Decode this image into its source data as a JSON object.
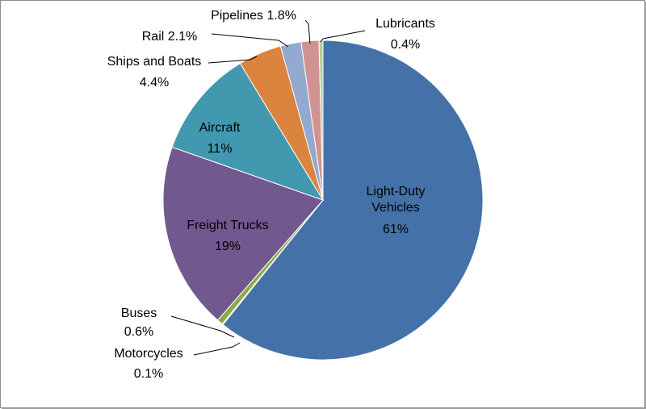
{
  "chart_data": {
    "type": "pie",
    "title": "",
    "slices": [
      {
        "name": "Light-Duty Vehicles",
        "value": 61,
        "pct_label": "61%",
        "color": "#4472A8"
      },
      {
        "name": "Motorcycles",
        "value": 0.1,
        "pct_label": "0.1%",
        "color": "#9BBB59"
      },
      {
        "name": "Buses",
        "value": 0.6,
        "pct_label": "0.6%",
        "color": "#8FA84A"
      },
      {
        "name": "Freight Trucks",
        "value": 19,
        "pct_label": "19%",
        "color": "#71588F"
      },
      {
        "name": "Aircraft",
        "value": 11,
        "pct_label": "11%",
        "color": "#4198AF"
      },
      {
        "name": "Ships and Boats",
        "value": 4.4,
        "pct_label": "4.4%",
        "color": "#DB843D"
      },
      {
        "name": "Rail",
        "value": 2.1,
        "pct_label": "2.1%",
        "color": "#93A9CF"
      },
      {
        "name": "Pipelines",
        "value": 1.8,
        "pct_label": "1.8%",
        "color": "#D19392"
      },
      {
        "name": "Lubricants",
        "value": 0.4,
        "pct_label": "0.4%",
        "color": "#B9CD96"
      }
    ],
    "labels": {
      "ldv_line1": "Light-Duty",
      "ldv_line2": "Vehicles",
      "ldv_pct": "61%",
      "freight_name": "Freight Trucks",
      "freight_pct": "19%",
      "aircraft_name": "Aircraft",
      "aircraft_pct": "11%",
      "ships_name": "Ships and Boats",
      "ships_pct": "4.4%",
      "rail": "Rail 2.1%",
      "pipelines": "Pipelines 1.8%",
      "lubricants_name": "Lubricants",
      "lubricants_pct": "0.4%",
      "buses_name": "Buses",
      "buses_pct": "0.6%",
      "motorcycles_name": "Motorcycles",
      "motorcycles_pct": "0.1%"
    }
  }
}
